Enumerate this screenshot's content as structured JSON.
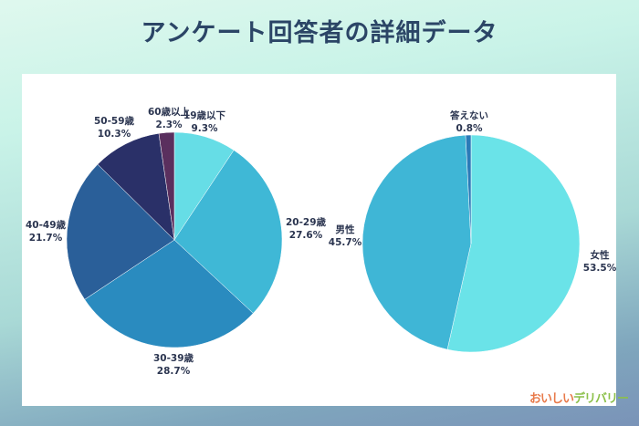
{
  "title": "アンケート回答者の詳細データ",
  "logo_text": "おいしいデリバリー",
  "chart_data": [
    {
      "type": "pie",
      "start": "top",
      "direction": "clockwise",
      "slices": [
        {
          "label": "19歳以下",
          "value": 9.3,
          "value_label": "9.3%",
          "color": "#66dde6"
        },
        {
          "label": "20-29歳",
          "value": 27.6,
          "value_label": "27.6%",
          "color": "#3fb8d6"
        },
        {
          "label": "30-39歳",
          "value": 28.7,
          "value_label": "28.7%",
          "color": "#2a8bbf"
        },
        {
          "label": "40-49歳",
          "value": 21.7,
          "value_label": "21.7%",
          "color": "#2a5f99"
        },
        {
          "label": "50-59歳",
          "value": 10.3,
          "value_label": "10.3%",
          "color": "#2a3068"
        },
        {
          "label": "60歳以上",
          "value": 2.3,
          "value_label": "2.3%",
          "color": "#5a2f5e"
        }
      ]
    },
    {
      "type": "pie",
      "start": "top",
      "direction": "clockwise",
      "slices": [
        {
          "label": "女性",
          "value": 53.5,
          "value_label": "53.5%",
          "color": "#6ae3e8"
        },
        {
          "label": "男性",
          "value": 45.7,
          "value_label": "45.7%",
          "color": "#3fb6d6"
        },
        {
          "label": "答えない",
          "value": 0.8,
          "value_label": "0.8%",
          "color": "#2a7ab8"
        }
      ]
    }
  ]
}
